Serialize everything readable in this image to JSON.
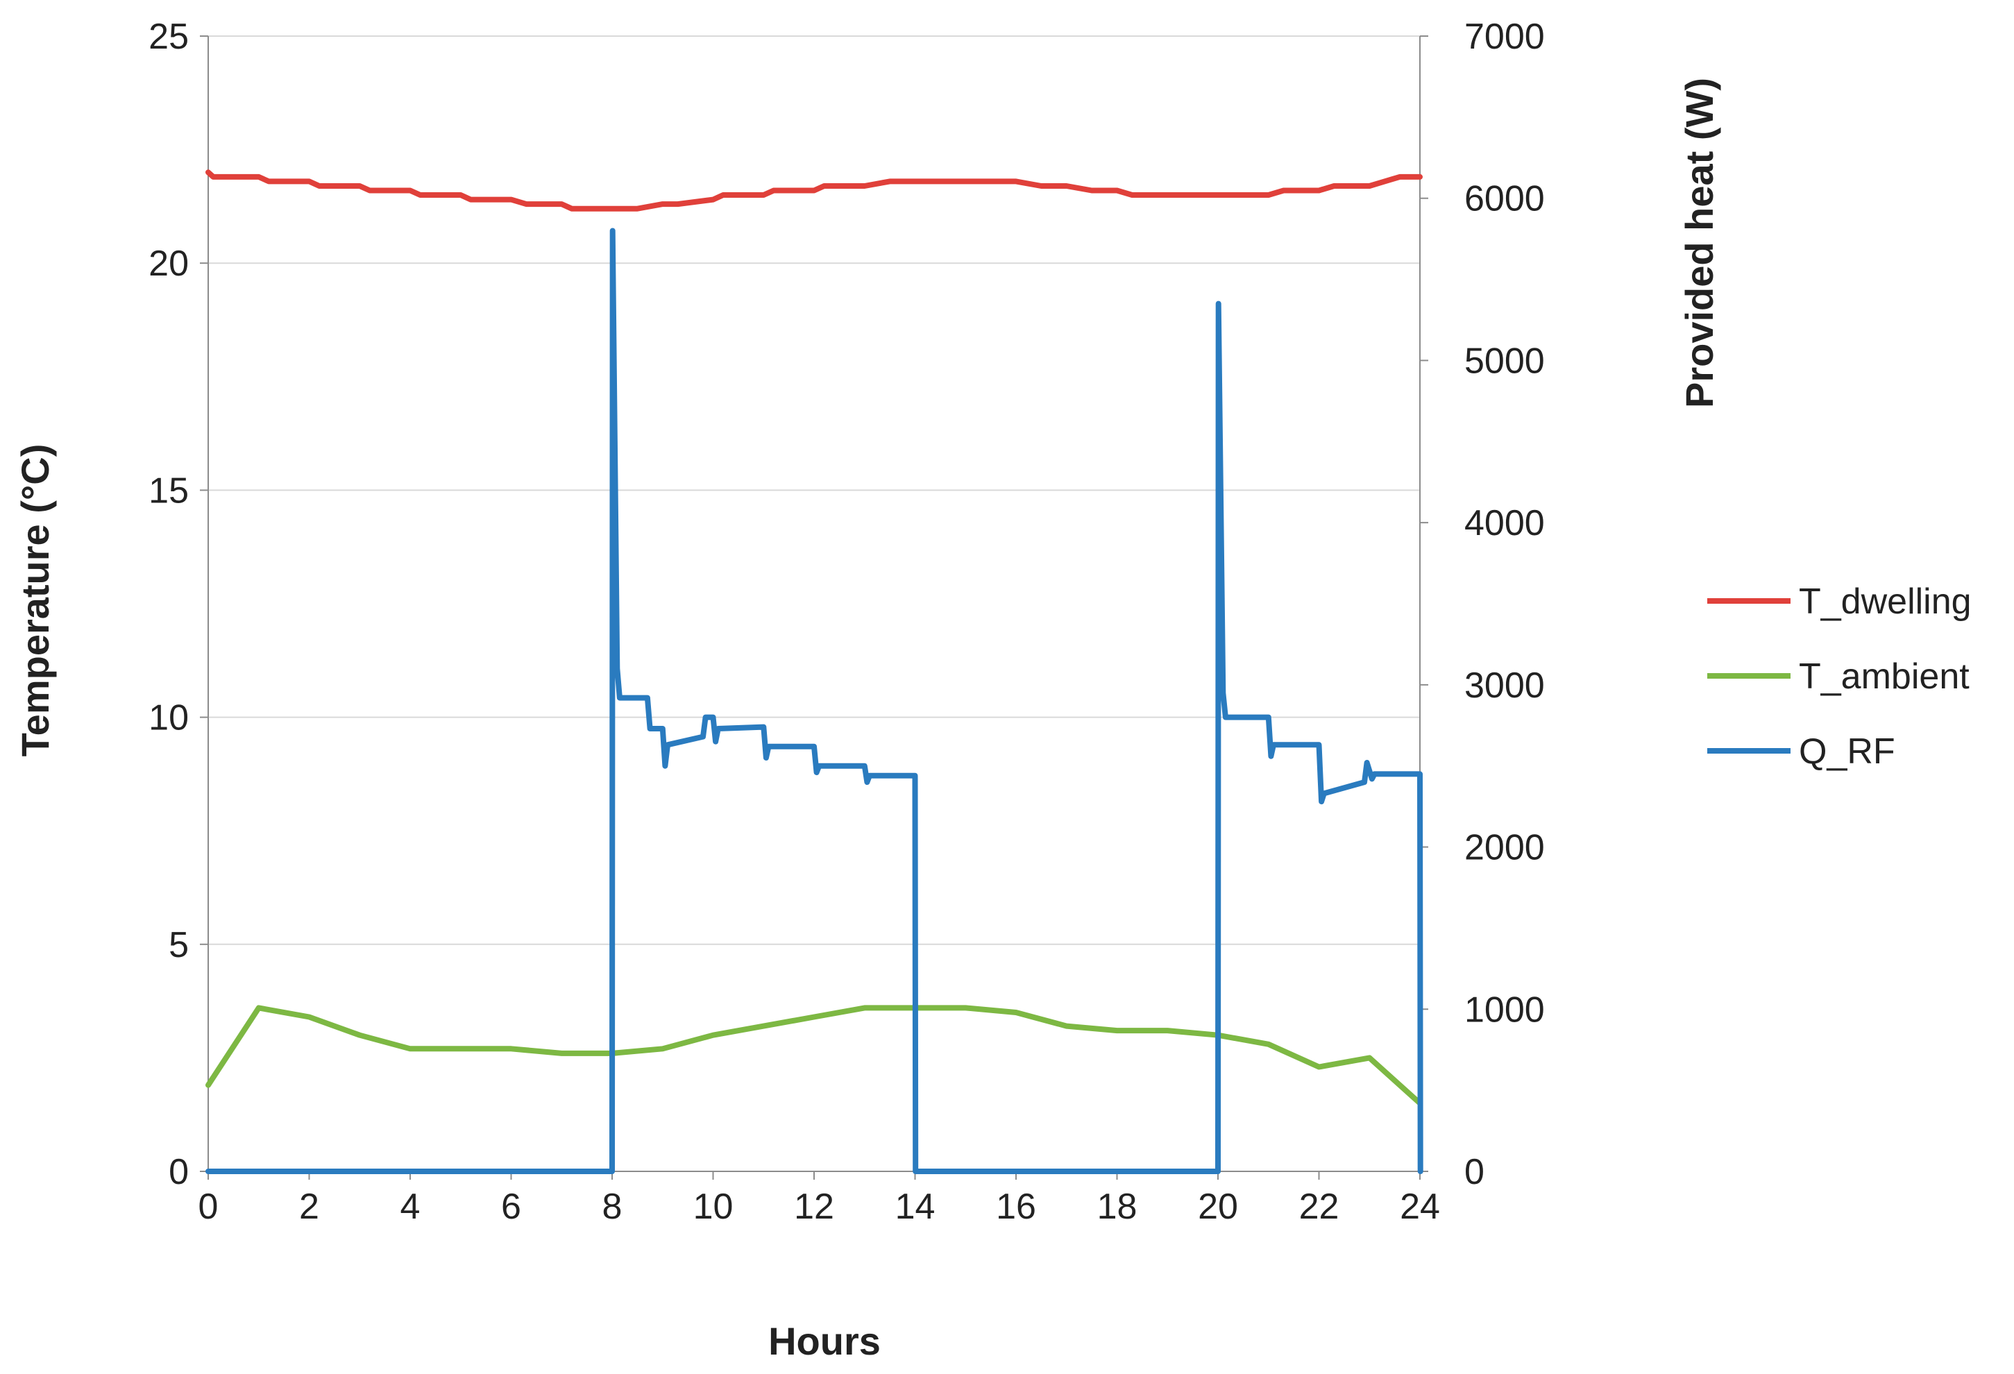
{
  "chart_data": {
    "type": "line",
    "xlabel": "Hours",
    "ylabel": "Temperature (°C)",
    "y2label": "Provided heat (W)",
    "xlim": [
      0,
      24
    ],
    "ylim": [
      0,
      25
    ],
    "y2lim": [
      0,
      7000
    ],
    "xticks": [
      0,
      2,
      4,
      6,
      8,
      10,
      12,
      14,
      16,
      18,
      20,
      22,
      24
    ],
    "yticks": [
      0,
      5,
      10,
      15,
      20,
      25
    ],
    "y2ticks": [
      0,
      1000,
      2000,
      3000,
      4000,
      5000,
      6000,
      7000
    ],
    "grid": "horizontal",
    "legend_position": "right",
    "series": [
      {
        "name": "T_dwelling",
        "axis": "left",
        "color": "#e0403a",
        "x": [
          0,
          0.1,
          1,
          1.2,
          2,
          2.2,
          3,
          3.2,
          4,
          4.2,
          5,
          5.2,
          6,
          6.3,
          7,
          7.2,
          8,
          8.5,
          9,
          9.3,
          10,
          10.2,
          11,
          11.2,
          12,
          12.2,
          13,
          13.5,
          14,
          14.5,
          15,
          15.5,
          16,
          16.5,
          17,
          17.5,
          18,
          18.3,
          19,
          19.5,
          20,
          20.3,
          21,
          21.3,
          22,
          22.3,
          23,
          23.3,
          23.6,
          24
        ],
        "y": [
          22.0,
          21.9,
          21.9,
          21.8,
          21.8,
          21.7,
          21.7,
          21.6,
          21.6,
          21.5,
          21.5,
          21.4,
          21.4,
          21.3,
          21.3,
          21.2,
          21.2,
          21.2,
          21.3,
          21.3,
          21.4,
          21.5,
          21.5,
          21.6,
          21.6,
          21.7,
          21.7,
          21.8,
          21.8,
          21.8,
          21.8,
          21.8,
          21.8,
          21.7,
          21.7,
          21.6,
          21.6,
          21.5,
          21.5,
          21.5,
          21.5,
          21.5,
          21.5,
          21.6,
          21.6,
          21.7,
          21.7,
          21.8,
          21.9,
          21.9
        ]
      },
      {
        "name": "T_ambient",
        "axis": "left",
        "color": "#7db843",
        "x": [
          0,
          1,
          2,
          3,
          4,
          5,
          6,
          7,
          8,
          9,
          10,
          11,
          12,
          13,
          14,
          15,
          16,
          17,
          18,
          19,
          20,
          21,
          22,
          23,
          24
        ],
        "y": [
          1.9,
          3.6,
          3.4,
          3.0,
          2.7,
          2.7,
          2.7,
          2.6,
          2.6,
          2.7,
          3.0,
          3.2,
          3.4,
          3.6,
          3.6,
          3.6,
          3.5,
          3.2,
          3.1,
          3.1,
          3.0,
          2.8,
          2.3,
          2.5,
          1.5
        ]
      },
      {
        "name": "Q_RF",
        "axis": "right",
        "color": "#2a7bbf",
        "x": [
          0,
          8,
          8.01,
          8.1,
          8.15,
          8.7,
          8.75,
          9,
          9.05,
          9.1,
          9.8,
          9.85,
          10,
          10.05,
          10.1,
          11,
          11.05,
          11.1,
          12,
          12.05,
          12.1,
          13,
          13.05,
          13.1,
          14,
          14.01,
          20,
          20.01,
          20.1,
          20.15,
          21,
          21.05,
          21.1,
          22,
          22.05,
          22.1,
          22.9,
          22.95,
          23.05,
          23.1,
          24,
          24.01
        ],
        "y": [
          0,
          0,
          5800,
          3100,
          2920,
          2920,
          2730,
          2730,
          2500,
          2630,
          2680,
          2800,
          2800,
          2650,
          2730,
          2740,
          2550,
          2620,
          2620,
          2460,
          2500,
          2500,
          2400,
          2440,
          2440,
          0,
          0,
          5350,
          2950,
          2800,
          2800,
          2560,
          2630,
          2630,
          2280,
          2330,
          2400,
          2520,
          2420,
          2450,
          2450,
          0
        ]
      }
    ]
  }
}
